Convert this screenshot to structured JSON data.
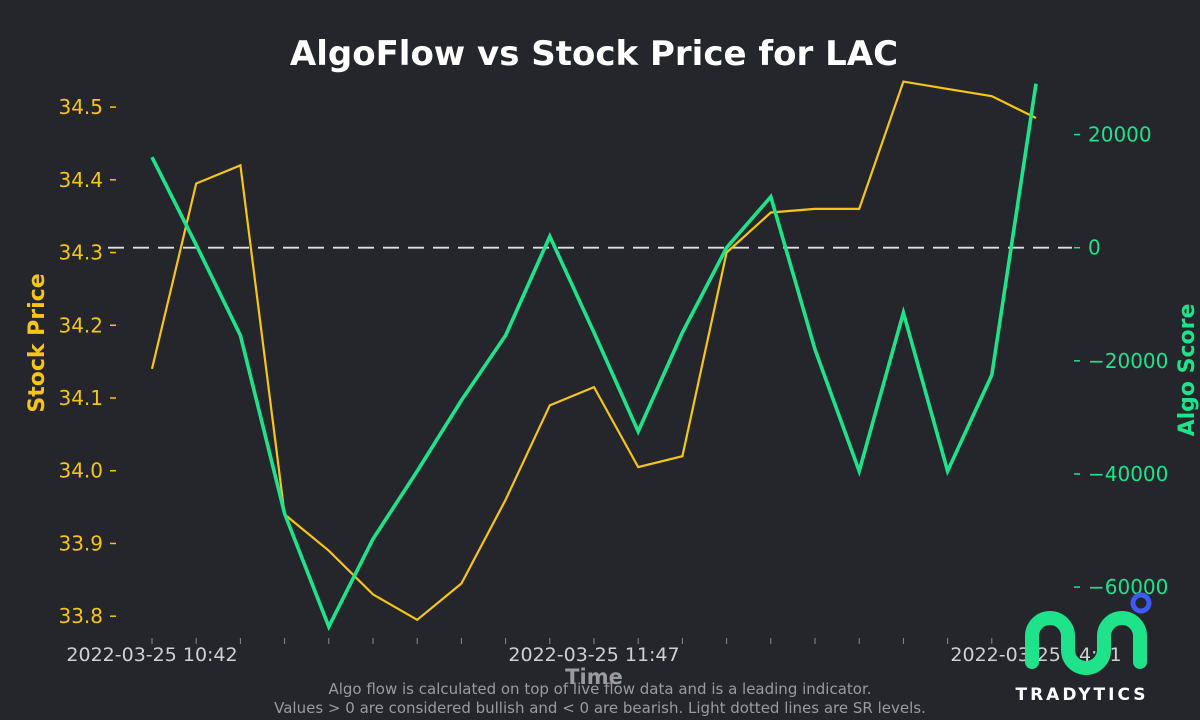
{
  "chart_data": {
    "type": "line",
    "title": "AlgoFlow vs Stock Price for LAC",
    "xlabel": "Time",
    "ylabel_left": "Stock Price",
    "ylabel_right": "Algo Score",
    "x_tick_labels": [
      "2022-03-25 10:42",
      "2022-03-25 11:47",
      "2022-03-25 14:21"
    ],
    "left_axis": {
      "ylim": [
        33.77,
        34.54
      ],
      "ticks": [
        33.8,
        33.9,
        34.0,
        34.1,
        34.2,
        34.3,
        34.4,
        34.5
      ],
      "tick_labels": [
        "33.8",
        "33.9",
        "34.0",
        "34.1",
        "34.2",
        "34.3",
        "34.4",
        "34.5"
      ]
    },
    "right_axis": {
      "ylim": [
        -69000,
        30000
      ],
      "ticks": [
        -60000,
        -40000,
        -20000,
        0,
        20000
      ],
      "tick_labels": [
        "−60000",
        "−40000",
        "−20000",
        "0",
        "20000"
      ]
    },
    "grid": false,
    "reference_line": {
      "axis": "right",
      "value": 0,
      "style": "dashed"
    },
    "series": [
      {
        "axis": "left",
        "color": "#f5c518",
        "values": [
          34.14,
          34.395,
          34.42,
          33.94,
          33.89,
          33.83,
          33.795,
          33.845,
          33.96,
          34.09,
          34.115,
          34.005,
          34.02,
          34.3,
          34.355,
          34.36,
          34.36,
          34.535,
          34.525,
          34.515,
          34.485
        ]
      },
      {
        "axis": "right",
        "color": "#1ee38a",
        "values": [
          16000,
          500,
          -15500,
          -47000,
          -67000,
          -51500,
          -39500,
          -27000,
          -15500,
          2000,
          -15000,
          -32500,
          -15000,
          0,
          9000,
          -18000,
          -39500,
          -11500,
          -39500,
          -22500,
          29000
        ]
      }
    ]
  },
  "footer": {
    "note_line1": "Algo flow is calculated on top of live flow data and is a leading indicator.",
    "note_line2": "Values > 0 are considered bullish and < 0 are bearish. Light dotted lines are SR levels."
  },
  "logo": {
    "text": "TRADYTICS"
  },
  "colors": {
    "background": "#25262b",
    "price": "#f5c518",
    "algo": "#1ee38a",
    "title": "#ffffff",
    "tick_text": "#d0d0d0",
    "footer_text": "#9a9aa0",
    "logo_dot": "#3d5afe"
  }
}
